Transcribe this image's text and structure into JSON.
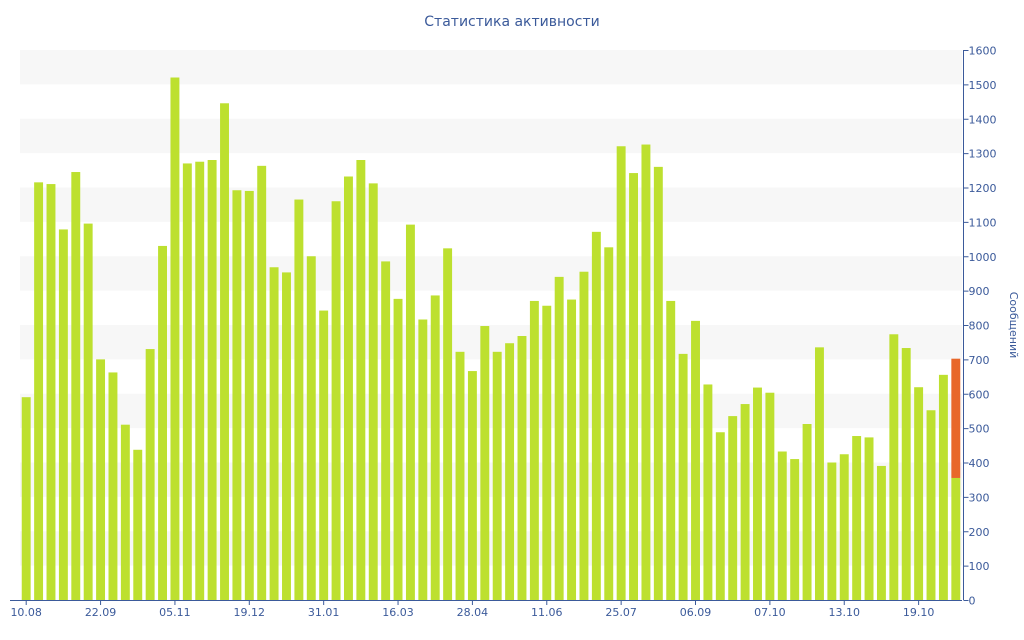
{
  "chart_data": {
    "type": "bar",
    "title": "Статистика активности",
    "ylabel": "Сообщений",
    "xlabel": "",
    "ylim": [
      0,
      1600
    ],
    "y_ticks": [
      0,
      100,
      200,
      300,
      400,
      500,
      600,
      700,
      800,
      900,
      1000,
      1100,
      1200,
      1300,
      1400,
      1500,
      1600
    ],
    "y_axis_position": "right",
    "grid": "alternating horizontal bands",
    "x_tick_labels": [
      {
        "label": "10.08",
        "index": 0
      },
      {
        "label": "22.09",
        "index": 6
      },
      {
        "label": "05.11",
        "index": 12
      },
      {
        "label": "19.12",
        "index": 18
      },
      {
        "label": "31.01",
        "index": 24
      },
      {
        "label": "16.03",
        "index": 30
      },
      {
        "label": "28.04",
        "index": 36
      },
      {
        "label": "11.06",
        "index": 42
      },
      {
        "label": "25.07",
        "index": 48
      },
      {
        "label": "06.09",
        "index": 54
      },
      {
        "label": "07.10",
        "index": 60
      },
      {
        "label": "13.10",
        "index": 66
      },
      {
        "label": "19.10",
        "index": 72
      }
    ],
    "colors": {
      "bar": "#bde02f",
      "highlight": "#e8672a",
      "band": "#f7f7f7",
      "axis": "#3b5a9a"
    },
    "values": [
      590,
      1215,
      1210,
      1078,
      1245,
      1095,
      700,
      662,
      510,
      437,
      730,
      1030,
      1520,
      1270,
      1275,
      1280,
      1445,
      1192,
      1190,
      1263,
      968,
      953,
      1165,
      1000,
      842,
      1160,
      1232,
      1280,
      1212,
      985,
      876,
      1092,
      816,
      886,
      1023,
      722,
      666,
      797,
      722,
      747,
      768,
      870,
      856,
      940,
      874,
      955,
      1071,
      1026,
      1320,
      1242,
      1325,
      1260,
      870,
      716,
      812,
      627,
      488,
      535,
      570,
      618,
      603,
      432,
      410,
      512,
      735,
      400,
      424,
      477,
      473,
      390,
      773,
      733,
      619,
      552,
      655,
      702
    ],
    "last_bar_highlight": {
      "from": 355,
      "to": 702
    }
  }
}
